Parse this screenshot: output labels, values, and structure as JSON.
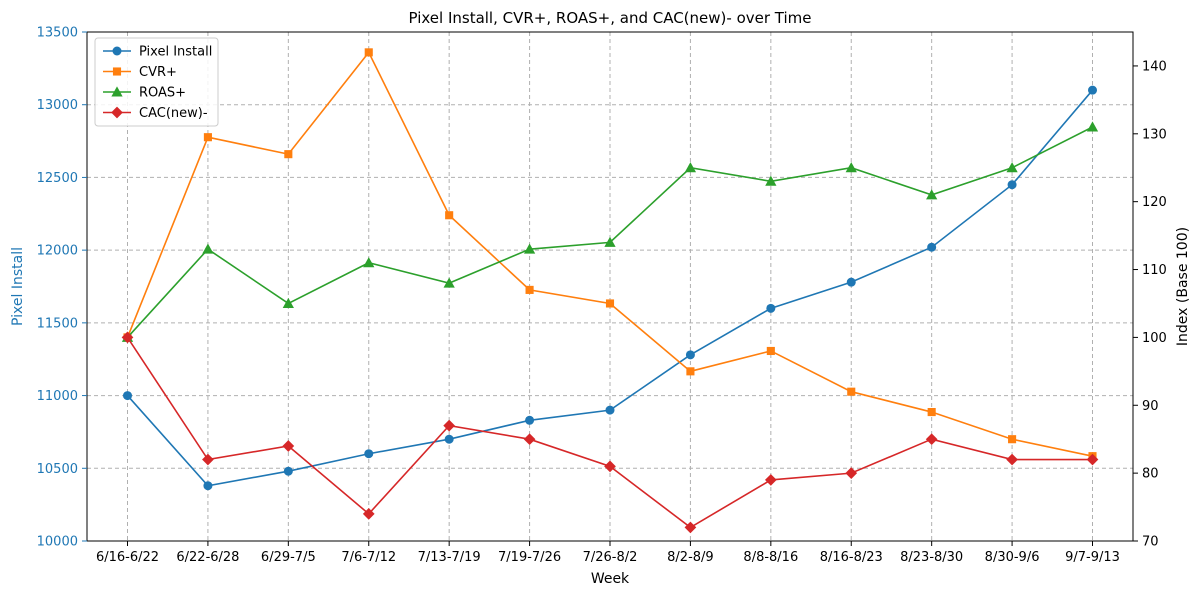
{
  "chart_data": {
    "type": "line",
    "title": "Pixel Install, CVR+, ROAS+, and CAC(new)- over Time",
    "xlabel": "Week",
    "ylabel_left": "Pixel Install",
    "ylabel_right": "Index (Base 100)",
    "categories": [
      "6/16-6/22",
      "6/22-6/28",
      "6/29-7/5",
      "7/6-7/12",
      "7/13-7/19",
      "7/19-7/26",
      "7/26-8/2",
      "8/2-8/9",
      "8/8-8/16",
      "8/16-8/23",
      "8/23-8/30",
      "8/30-9/6",
      "9/7-9/13"
    ],
    "ylim_left": [
      10000,
      13500
    ],
    "yticks_left": [
      10000,
      10500,
      11000,
      11500,
      12000,
      12500,
      13000,
      13500
    ],
    "ylim_right": [
      70,
      145
    ],
    "yticks_right": [
      70,
      80,
      90,
      100,
      110,
      120,
      130,
      140
    ],
    "grid": true,
    "legend_position": "top-left",
    "series": [
      {
        "name": "Pixel Install",
        "axis": "left",
        "color": "#1f77b4",
        "marker": "circle",
        "values": [
          11000,
          10380,
          10480,
          10600,
          10700,
          10830,
          10900,
          11280,
          11600,
          11780,
          12020,
          12450,
          13100
        ]
      },
      {
        "name": "CVR+",
        "axis": "right",
        "color": "#ff7f0e",
        "marker": "square",
        "values": [
          100,
          129.5,
          127,
          142,
          118,
          107,
          105,
          95,
          98,
          92,
          89,
          85,
          82.5
        ]
      },
      {
        "name": "ROAS+",
        "axis": "right",
        "color": "#2ca02c",
        "marker": "triangle",
        "values": [
          100,
          113,
          105,
          111,
          108,
          113,
          114,
          125,
          123,
          125,
          121,
          125,
          131
        ]
      },
      {
        "name": "CAC(new)-",
        "axis": "right",
        "color": "#d62728",
        "marker": "diamond",
        "values": [
          100,
          82,
          84,
          74,
          87,
          85,
          81,
          72,
          79,
          80,
          85,
          82,
          82
        ]
      }
    ],
    "left_axis_color": "#1f77b4"
  }
}
